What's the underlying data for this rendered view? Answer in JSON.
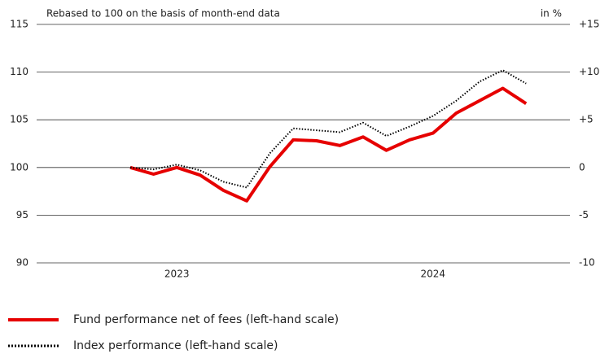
{
  "chart_data": {
    "type": "line",
    "subtitle": "Rebased to 100 on the basis of month-end data",
    "y2_label": "in %",
    "categories": [
      null,
      null,
      "2023",
      null,
      null,
      null,
      null,
      null,
      null,
      null,
      null,
      null,
      null,
      "2024",
      null,
      null,
      null,
      null
    ],
    "series": [
      {
        "name": "Fund performance net of fees (left-hand scale)",
        "color": "#e60000",
        "style": "solid",
        "values": [
          100,
          99.3,
          100,
          99.2,
          97.6,
          96.5,
          100.1,
          102.9,
          102.8,
          102.3,
          103.2,
          101.8,
          102.9,
          103.6,
          105.7,
          107.0,
          108.3,
          106.7
        ]
      },
      {
        "name": "Index performance (left-hand scale)",
        "color": "#000000",
        "style": "dotted",
        "values": [
          100,
          99.8,
          100.3,
          99.7,
          98.5,
          97.9,
          101.5,
          104.1,
          103.9,
          103.7,
          104.7,
          103.3,
          104.3,
          105.4,
          107.0,
          109.0,
          110.2,
          108.8
        ]
      }
    ],
    "ylim": [
      90,
      115
    ],
    "yticks": [
      90,
      95,
      100,
      105,
      110,
      115
    ],
    "y2lim": [
      -10,
      15
    ],
    "y2ticks": [
      -10,
      -5,
      0,
      {
        "value": 5,
        "label": "+5"
      },
      {
        "value": 10,
        "label": "+10"
      },
      {
        "value": 15,
        "label": "+15"
      }
    ],
    "grid": true
  }
}
